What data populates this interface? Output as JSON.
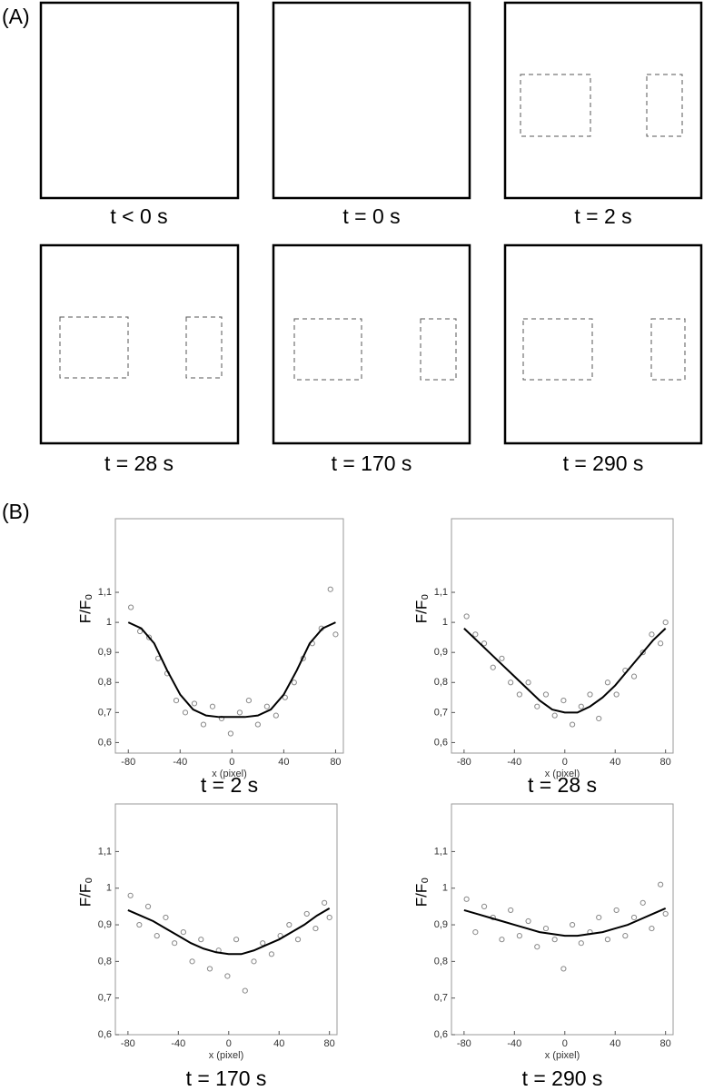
{
  "panel_a": {
    "label": "(A)",
    "frames": [
      {
        "caption": "t < 0 s"
      },
      {
        "caption": "t = 0 s"
      },
      {
        "caption": "t = 2 s"
      },
      {
        "caption": "t = 28 s"
      },
      {
        "caption": "t = 170 s"
      },
      {
        "caption": "t = 290 s"
      }
    ]
  },
  "panel_b": {
    "label": "(B)"
  },
  "chart_data": [
    {
      "type": "scatter",
      "caption": "t = 2 s",
      "xlabel": "x (pixel)",
      "ylabel": "F/F₀",
      "xlim": [
        -90,
        86
      ],
      "xticks": [
        -80,
        -40,
        0,
        40,
        80
      ],
      "ylim": [
        0.565,
        1.345
      ],
      "yticks": [
        {
          "value": 0.6,
          "label": "0,6"
        },
        {
          "value": 0.7,
          "label": "0,7"
        },
        {
          "value": 0.8,
          "label": "0,8"
        },
        {
          "value": 0.9,
          "label": "0,9"
        },
        1,
        {
          "value": 1.1,
          "label": "1,1"
        }
      ],
      "points": {
        "color": "#888888",
        "x": [
          -78,
          -71,
          -64,
          -57,
          -50,
          -43,
          -36,
          -29,
          -22,
          -15,
          -8,
          -1,
          6,
          13,
          20,
          27,
          34,
          41,
          48,
          55,
          62,
          69,
          76,
          80
        ],
        "y": [
          1.05,
          0.97,
          0.95,
          0.88,
          0.83,
          0.74,
          0.7,
          0.73,
          0.66,
          0.72,
          0.68,
          0.63,
          0.7,
          0.74,
          0.66,
          0.72,
          0.69,
          0.75,
          0.8,
          0.88,
          0.93,
          0.98,
          1.11,
          0.96
        ]
      },
      "fit": {
        "color": "#000000",
        "x": [
          -80,
          -70,
          -60,
          -50,
          -40,
          -30,
          -20,
          -10,
          0,
          10,
          20,
          30,
          40,
          50,
          60,
          70,
          80
        ],
        "y": [
          1.0,
          0.98,
          0.93,
          0.84,
          0.76,
          0.71,
          0.69,
          0.685,
          0.685,
          0.685,
          0.69,
          0.71,
          0.76,
          0.84,
          0.93,
          0.98,
          1.0
        ]
      }
    },
    {
      "type": "scatter",
      "caption": "t = 28 s",
      "xlabel": "x (pixel)",
      "ylabel": "F/F₀",
      "xlim": [
        -90,
        86
      ],
      "xticks": [
        -80,
        -40,
        0,
        40,
        80
      ],
      "ylim": [
        0.565,
        1.345
      ],
      "yticks": [
        {
          "value": 0.6,
          "label": "0,6"
        },
        {
          "value": 0.7,
          "label": "0,7"
        },
        {
          "value": 0.8,
          "label": "0,8"
        },
        {
          "value": 0.9,
          "label": "0,9"
        },
        1,
        {
          "value": 1.1,
          "label": "1,1"
        }
      ],
      "points": {
        "color": "#888888",
        "x": [
          -78,
          -71,
          -64,
          -57,
          -50,
          -43,
          -36,
          -29,
          -22,
          -15,
          -8,
          -1,
          6,
          13,
          20,
          27,
          34,
          41,
          48,
          55,
          62,
          69,
          76,
          80
        ],
        "y": [
          1.02,
          0.96,
          0.93,
          0.85,
          0.88,
          0.8,
          0.76,
          0.8,
          0.72,
          0.76,
          0.69,
          0.74,
          0.66,
          0.72,
          0.76,
          0.68,
          0.8,
          0.76,
          0.84,
          0.82,
          0.9,
          0.96,
          0.93,
          1.0
        ]
      },
      "fit": {
        "color": "#000000",
        "x": [
          -80,
          -70,
          -60,
          -50,
          -40,
          -30,
          -20,
          -10,
          0,
          10,
          20,
          30,
          40,
          50,
          60,
          70,
          80
        ],
        "y": [
          0.98,
          0.94,
          0.9,
          0.86,
          0.82,
          0.78,
          0.74,
          0.71,
          0.7,
          0.7,
          0.72,
          0.75,
          0.79,
          0.84,
          0.89,
          0.94,
          0.98
        ]
      }
    },
    {
      "type": "scatter",
      "caption": "t = 170 s",
      "xlabel": "x (pixel)",
      "ylabel": "F/F₀",
      "xlim": [
        -90,
        86
      ],
      "xticks": [
        -80,
        -40,
        0,
        40,
        80
      ],
      "ylim": [
        0.6,
        1.23
      ],
      "yticks": [
        {
          "value": 0.6,
          "label": "0,6"
        },
        {
          "value": 0.7,
          "label": "0,7"
        },
        {
          "value": 0.8,
          "label": "0,8"
        },
        {
          "value": 0.9,
          "label": "0,9"
        },
        1,
        {
          "value": 1.1,
          "label": "1,1"
        }
      ],
      "points": {
        "color": "#888888",
        "x": [
          -78,
          -71,
          -64,
          -57,
          -50,
          -43,
          -36,
          -29,
          -22,
          -15,
          -8,
          -1,
          6,
          13,
          20,
          27,
          34,
          41,
          48,
          55,
          62,
          69,
          76,
          80
        ],
        "y": [
          0.98,
          0.9,
          0.95,
          0.87,
          0.92,
          0.85,
          0.88,
          0.8,
          0.86,
          0.78,
          0.83,
          0.76,
          0.86,
          0.72,
          0.8,
          0.85,
          0.82,
          0.87,
          0.9,
          0.86,
          0.93,
          0.89,
          0.96,
          0.92
        ]
      },
      "fit": {
        "color": "#000000",
        "x": [
          -80,
          -70,
          -60,
          -50,
          -40,
          -30,
          -20,
          -10,
          0,
          10,
          20,
          30,
          40,
          50,
          60,
          70,
          80
        ],
        "y": [
          0.94,
          0.925,
          0.91,
          0.89,
          0.87,
          0.85,
          0.835,
          0.825,
          0.82,
          0.82,
          0.83,
          0.845,
          0.86,
          0.88,
          0.9,
          0.925,
          0.945
        ]
      }
    },
    {
      "type": "scatter",
      "caption": "t = 290 s",
      "xlabel": "x (pixel)",
      "ylabel": "F/F₀",
      "xlim": [
        -90,
        86
      ],
      "xticks": [
        -80,
        -40,
        0,
        40,
        80
      ],
      "ylim": [
        0.6,
        1.23
      ],
      "yticks": [
        {
          "value": 0.6,
          "label": "0,6"
        },
        {
          "value": 0.7,
          "label": "0,7"
        },
        {
          "value": 0.8,
          "label": "0,8"
        },
        {
          "value": 0.9,
          "label": "0,9"
        },
        1,
        {
          "value": 1.1,
          "label": "1,1"
        }
      ],
      "points": {
        "color": "#888888",
        "x": [
          -78,
          -71,
          -64,
          -57,
          -50,
          -43,
          -36,
          -29,
          -22,
          -15,
          -8,
          -1,
          6,
          13,
          20,
          27,
          34,
          41,
          48,
          55,
          62,
          69,
          76,
          80
        ],
        "y": [
          0.97,
          0.88,
          0.95,
          0.92,
          0.86,
          0.94,
          0.87,
          0.91,
          0.84,
          0.89,
          0.86,
          0.78,
          0.9,
          0.85,
          0.88,
          0.92,
          0.86,
          0.94,
          0.87,
          0.92,
          0.96,
          0.89,
          1.01,
          0.93
        ]
      },
      "fit": {
        "color": "#000000",
        "x": [
          -80,
          -70,
          -60,
          -50,
          -40,
          -30,
          -20,
          -10,
          0,
          10,
          20,
          30,
          40,
          50,
          60,
          70,
          80
        ],
        "y": [
          0.94,
          0.93,
          0.92,
          0.91,
          0.9,
          0.89,
          0.88,
          0.875,
          0.87,
          0.87,
          0.875,
          0.88,
          0.89,
          0.9,
          0.915,
          0.93,
          0.945
        ]
      }
    }
  ]
}
